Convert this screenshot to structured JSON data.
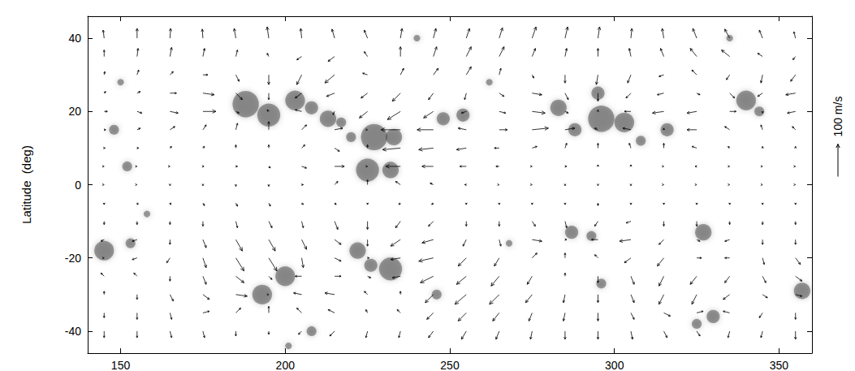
{
  "chart_data": {
    "type": "quiver",
    "ylabel": "Latitude  (deg)",
    "xlim": [
      140,
      360
    ],
    "xticks": [
      150,
      200,
      250,
      300,
      350
    ],
    "ylim": [
      -46,
      46
    ],
    "yticks": [
      -40,
      -20,
      0,
      20,
      40
    ],
    "color": "#000000",
    "scale_arrow": {
      "value": 100,
      "label": "100 m/s"
    },
    "lon": [
      145,
      155,
      165,
      175,
      185,
      195,
      205,
      215,
      225,
      235,
      245,
      255,
      265,
      275,
      285,
      295,
      305,
      315,
      325,
      335,
      345,
      355
    ],
    "lat": [
      40,
      35,
      30,
      25,
      20,
      15,
      10,
      5,
      0,
      -5,
      -10,
      -15,
      -20,
      -25,
      -30,
      -35,
      -40
    ],
    "u": [
      [
        -3,
        0,
        2,
        -2,
        -5,
        -5,
        -3,
        -8,
        -10,
        5,
        8,
        10,
        10,
        12,
        8,
        5,
        3,
        -5,
        -12,
        -15,
        -10,
        -5
      ],
      [
        0,
        3,
        5,
        5,
        5,
        -5,
        -15,
        -20,
        -10,
        0,
        10,
        15,
        15,
        10,
        5,
        0,
        -5,
        -10,
        -20,
        -25,
        -15,
        -8
      ],
      [
        2,
        5,
        10,
        15,
        10,
        0,
        -15,
        -30,
        -15,
        10,
        15,
        15,
        5,
        5,
        0,
        -5,
        -10,
        -15,
        -15,
        -10,
        -5,
        -15
      ],
      [
        5,
        10,
        20,
        35,
        20,
        0,
        -20,
        -25,
        -20,
        -25,
        -15,
        -5,
        15,
        30,
        10,
        0,
        -15,
        -20,
        10,
        15,
        -15,
        -30
      ],
      [
        10,
        15,
        25,
        40,
        10,
        -5,
        -20,
        -5,
        -25,
        -40,
        -30,
        -15,
        20,
        40,
        10,
        0,
        -20,
        -35,
        -30,
        20,
        0,
        -25
      ],
      [
        5,
        10,
        15,
        10,
        5,
        0,
        15,
        25,
        0,
        -60,
        -50,
        -25,
        25,
        50,
        30,
        -10,
        -25,
        0,
        -30,
        -15,
        -5,
        -10
      ],
      [
        3,
        5,
        5,
        5,
        0,
        0,
        10,
        15,
        0,
        -55,
        -45,
        -30,
        -15,
        15,
        5,
        0,
        -5,
        0,
        -15,
        -5,
        0,
        0
      ],
      [
        0,
        0,
        0,
        3,
        5,
        5,
        15,
        30,
        0,
        -45,
        -35,
        -20,
        -10,
        0,
        5,
        0,
        0,
        0,
        -5,
        0,
        0,
        0
      ],
      [
        0,
        0,
        0,
        0,
        0,
        0,
        5,
        10,
        0,
        -15,
        -10,
        -5,
        0,
        0,
        0,
        0,
        0,
        0,
        0,
        0,
        0,
        0
      ],
      [
        0,
        3,
        3,
        5,
        5,
        5,
        5,
        5,
        0,
        -5,
        -5,
        0,
        0,
        0,
        0,
        0,
        0,
        0,
        0,
        0,
        0,
        0
      ],
      [
        0,
        0,
        0,
        0,
        5,
        10,
        5,
        10,
        0,
        -15,
        -15,
        0,
        0,
        10,
        5,
        -10,
        -15,
        0,
        0,
        0,
        0,
        0
      ],
      [
        -10,
        -15,
        0,
        10,
        20,
        20,
        15,
        20,
        0,
        -30,
        -35,
        -10,
        5,
        30,
        5,
        -20,
        -35,
        -15,
        10,
        -15,
        0,
        0
      ],
      [
        0,
        -15,
        -10,
        10,
        25,
        25,
        5,
        20,
        5,
        -30,
        -45,
        -25,
        -15,
        15,
        0,
        -10,
        -20,
        -20,
        15,
        -15,
        5,
        15
      ],
      [
        -10,
        -10,
        0,
        10,
        25,
        10,
        -20,
        20,
        10,
        -25,
        -40,
        -30,
        -25,
        -15,
        0,
        0,
        10,
        -15,
        -20,
        -15,
        10,
        20
      ],
      [
        0,
        0,
        10,
        20,
        35,
        0,
        -25,
        -30,
        -10,
        0,
        -25,
        -35,
        -30,
        -20,
        -5,
        0,
        10,
        -15,
        -15,
        -20,
        15,
        20
      ],
      [
        0,
        0,
        5,
        20,
        15,
        0,
        -15,
        -20,
        -5,
        -10,
        -20,
        -25,
        -20,
        -10,
        -5,
        0,
        10,
        20,
        20,
        -20,
        -10,
        0
      ],
      [
        0,
        0,
        5,
        5,
        0,
        0,
        -10,
        -15,
        -5,
        -5,
        -15,
        -15,
        -10,
        -5,
        0,
        0,
        5,
        10,
        10,
        -5,
        -5,
        0
      ]
    ],
    "v": [
      [
        25,
        30,
        30,
        28,
        30,
        35,
        30,
        28,
        25,
        30,
        30,
        30,
        32,
        35,
        35,
        35,
        30,
        30,
        30,
        28,
        25,
        20
      ],
      [
        20,
        25,
        28,
        25,
        20,
        10,
        -10,
        -15,
        15,
        30,
        30,
        30,
        30,
        25,
        25,
        25,
        25,
        25,
        25,
        20,
        10,
        -10
      ],
      [
        10,
        15,
        10,
        0,
        -20,
        -30,
        -30,
        -25,
        5,
        20,
        20,
        25,
        20,
        -10,
        -25,
        -30,
        -25,
        -5,
        15,
        -15,
        -25,
        -20
      ],
      [
        5,
        5,
        0,
        -5,
        -20,
        -20,
        -15,
        -10,
        -15,
        -25,
        -20,
        -20,
        -10,
        -5,
        -20,
        -25,
        -15,
        -5,
        -5,
        -15,
        -10,
        -5
      ],
      [
        0,
        -5,
        -5,
        0,
        -5,
        5,
        5,
        -10,
        -20,
        -25,
        -20,
        -5,
        -5,
        -5,
        -5,
        5,
        0,
        -5,
        -5,
        0,
        -5,
        -5
      ],
      [
        0,
        5,
        10,
        15,
        20,
        25,
        15,
        5,
        0,
        0,
        0,
        5,
        0,
        5,
        5,
        5,
        5,
        5,
        0,
        10,
        15,
        10
      ],
      [
        0,
        0,
        5,
        5,
        10,
        10,
        10,
        -10,
        10,
        -5,
        -5,
        -5,
        0,
        5,
        15,
        15,
        15,
        15,
        5,
        5,
        5,
        5
      ],
      [
        0,
        0,
        0,
        0,
        0,
        -5,
        -5,
        0,
        0,
        0,
        0,
        0,
        0,
        0,
        0,
        5,
        5,
        0,
        0,
        0,
        0,
        0
      ],
      [
        0,
        0,
        -3,
        -3,
        -5,
        -5,
        0,
        10,
        15,
        10,
        5,
        0,
        0,
        0,
        -3,
        -3,
        -3,
        0,
        0,
        0,
        0,
        0
      ],
      [
        -5,
        -5,
        -5,
        -8,
        -10,
        -10,
        -5,
        -5,
        -5,
        -5,
        -5,
        -5,
        -5,
        -5,
        -5,
        -8,
        -5,
        -5,
        -5,
        -5,
        -5,
        -5
      ],
      [
        -10,
        -10,
        -10,
        -15,
        -20,
        -20,
        -20,
        -25,
        -25,
        -20,
        -15,
        -15,
        -15,
        -15,
        -20,
        -15,
        -5,
        -15,
        -15,
        -10,
        -10,
        -10
      ],
      [
        -5,
        -5,
        -15,
        -25,
        -35,
        -35,
        -30,
        -15,
        -20,
        -20,
        -10,
        -20,
        -20,
        -5,
        0,
        0,
        -5,
        -15,
        -5,
        -5,
        -15,
        -15
      ],
      [
        0,
        -5,
        -15,
        -30,
        -40,
        -40,
        -30,
        -10,
        0,
        -5,
        -10,
        -25,
        -25,
        15,
        15,
        10,
        -15,
        -25,
        0,
        0,
        -20,
        -20
      ],
      [
        10,
        10,
        -15,
        -25,
        -20,
        -10,
        0,
        0,
        -5,
        -5,
        -20,
        -25,
        -30,
        -25,
        10,
        -20,
        -25,
        -30,
        -25,
        -20,
        -20,
        -15
      ],
      [
        10,
        -15,
        -20,
        -15,
        -5,
        0,
        5,
        5,
        10,
        10,
        -25,
        -30,
        -30,
        -25,
        -25,
        -25,
        -25,
        -30,
        -30,
        -15,
        -10,
        -5
      ],
      [
        -15,
        -20,
        -20,
        5,
        15,
        20,
        15,
        10,
        10,
        10,
        -20,
        -25,
        -25,
        -25,
        -25,
        -25,
        -20,
        -10,
        5,
        5,
        -15,
        -20
      ],
      [
        -20,
        -20,
        -20,
        -20,
        -15,
        -10,
        -10,
        -15,
        -20,
        -20,
        -20,
        -25,
        -25,
        -25,
        -25,
        -25,
        -25,
        -20,
        -15,
        -20,
        -20,
        -25
      ]
    ],
    "active_regions": [
      [
        145,
        -18,
        6
      ],
      [
        153,
        -16,
        3
      ],
      [
        152,
        5,
        3
      ],
      [
        148,
        15,
        3
      ],
      [
        150,
        28,
        2
      ],
      [
        188,
        22,
        8
      ],
      [
        195,
        19,
        7
      ],
      [
        203,
        23,
        6
      ],
      [
        208,
        21,
        4
      ],
      [
        213,
        18,
        5
      ],
      [
        217,
        17,
        3
      ],
      [
        225,
        4,
        7
      ],
      [
        232,
        4,
        5
      ],
      [
        227,
        13,
        8
      ],
      [
        233,
        13,
        5
      ],
      [
        220,
        13,
        3
      ],
      [
        248,
        18,
        4
      ],
      [
        254,
        19,
        4
      ],
      [
        262,
        28,
        2
      ],
      [
        240,
        40,
        2
      ],
      [
        283,
        21,
        5
      ],
      [
        288,
        15,
        4
      ],
      [
        295,
        25,
        4
      ],
      [
        296,
        18,
        8
      ],
      [
        303,
        17,
        6
      ],
      [
        308,
        12,
        3
      ],
      [
        316,
        15,
        4
      ],
      [
        340,
        23,
        6
      ],
      [
        344,
        20,
        3
      ],
      [
        335,
        40,
        2
      ],
      [
        193,
        -30,
        6
      ],
      [
        200,
        -25,
        6
      ],
      [
        208,
        -40,
        3
      ],
      [
        201,
        -44,
        2
      ],
      [
        222,
        -18,
        5
      ],
      [
        226,
        -22,
        4
      ],
      [
        232,
        -23,
        7
      ],
      [
        246,
        -30,
        3
      ],
      [
        287,
        -13,
        4
      ],
      [
        293,
        -14,
        3
      ],
      [
        296,
        -27,
        3
      ],
      [
        327,
        -13,
        5
      ],
      [
        330,
        -36,
        4
      ],
      [
        325,
        -38,
        3
      ],
      [
        357,
        -29,
        5
      ],
      [
        158,
        -8,
        2
      ],
      [
        268,
        -16,
        2
      ]
    ]
  }
}
